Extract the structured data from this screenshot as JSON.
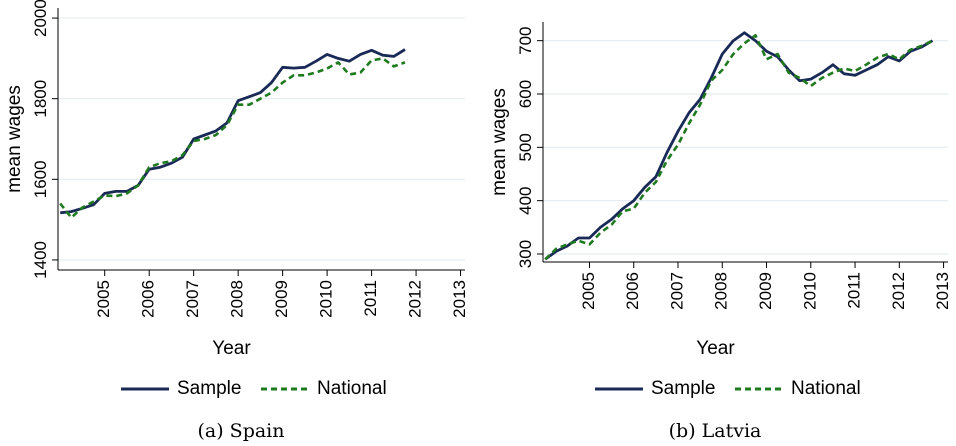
{
  "chart_data": [
    {
      "type": "line",
      "caption": "(a) Spain",
      "xlabel": "Year",
      "ylabel": "mean wages",
      "grid": true,
      "legend": "bottom",
      "xlim": [
        2003.95,
        2013.1
      ],
      "ylim": [
        1375,
        2025
      ],
      "xticks": [
        2005,
        2006,
        2007,
        2008,
        2009,
        2010,
        2011,
        2012,
        2013
      ],
      "yticks": [
        1400,
        1600,
        1800,
        2000
      ],
      "x": [
        2004,
        2004.25,
        2004.5,
        2004.75,
        2005,
        2005.25,
        2005.5,
        2005.75,
        2006,
        2006.25,
        2006.5,
        2006.75,
        2007,
        2007.25,
        2007.5,
        2007.75,
        2008,
        2008.25,
        2008.5,
        2008.75,
        2009,
        2009.25,
        2009.5,
        2009.75,
        2010,
        2010.25,
        2010.5,
        2010.75,
        2011,
        2011.25,
        2011.5,
        2011.75
      ],
      "series": [
        {
          "name": "Sample",
          "color": "#1a2a57",
          "style": "solid",
          "values": [
            1517,
            1520,
            1528,
            1537,
            1565,
            1570,
            1570,
            1585,
            1625,
            1630,
            1640,
            1655,
            1700,
            1710,
            1720,
            1740,
            1795,
            1805,
            1815,
            1840,
            1878,
            1876,
            1878,
            1893,
            1910,
            1900,
            1893,
            1910,
            1920,
            1908,
            1905,
            1922
          ]
        },
        {
          "name": "National",
          "color": "#1f7a1f",
          "style": "dashed",
          "values": [
            1540,
            1505,
            1530,
            1545,
            1560,
            1558,
            1565,
            1585,
            1630,
            1640,
            1645,
            1660,
            1695,
            1700,
            1710,
            1735,
            1785,
            1785,
            1800,
            1815,
            1840,
            1858,
            1858,
            1865,
            1875,
            1890,
            1860,
            1865,
            1895,
            1900,
            1880,
            1890
          ]
        }
      ]
    },
    {
      "type": "line",
      "caption": "(b) Latvia",
      "xlabel": "Year",
      "ylabel": "mean wages",
      "grid": true,
      "legend": "bottom",
      "xlim": [
        2003.95,
        2013.1
      ],
      "ylim": [
        285,
        735
      ],
      "xticks": [
        2005,
        2006,
        2007,
        2008,
        2009,
        2010,
        2011,
        2012,
        2013
      ],
      "yticks": [
        300,
        400,
        500,
        600,
        700
      ],
      "x": [
        2004,
        2004.25,
        2004.5,
        2004.75,
        2005,
        2005.25,
        2005.5,
        2005.75,
        2006,
        2006.25,
        2006.5,
        2006.75,
        2007,
        2007.25,
        2007.5,
        2007.75,
        2008,
        2008.25,
        2008.5,
        2008.75,
        2009,
        2009.25,
        2009.5,
        2009.75,
        2010,
        2010.25,
        2010.5,
        2010.75,
        2011,
        2011.25,
        2011.5,
        2011.75,
        2012,
        2012.25,
        2012.5,
        2012.75
      ],
      "series": [
        {
          "name": "Sample",
          "color": "#1a2a57",
          "style": "solid",
          "values": [
            290,
            305,
            315,
            330,
            330,
            350,
            365,
            385,
            400,
            425,
            445,
            490,
            530,
            565,
            590,
            630,
            675,
            700,
            715,
            700,
            680,
            670,
            645,
            625,
            628,
            640,
            655,
            638,
            635,
            645,
            655,
            670,
            662,
            680,
            688,
            700
          ]
        },
        {
          "name": "National",
          "color": "#1f7a1f",
          "style": "dashed",
          "values": [
            290,
            310,
            318,
            325,
            318,
            340,
            355,
            380,
            385,
            415,
            435,
            475,
            505,
            545,
            580,
            625,
            645,
            675,
            695,
            710,
            665,
            675,
            640,
            630,
            615,
            630,
            640,
            648,
            643,
            655,
            668,
            675,
            665,
            683,
            690,
            700
          ]
        }
      ]
    }
  ]
}
